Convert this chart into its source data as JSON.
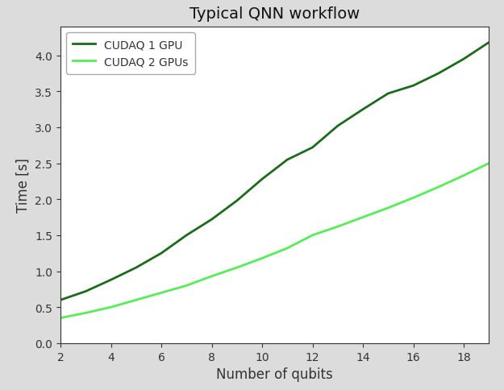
{
  "title": "Typical QNN workflow",
  "xlabel": "Number of qubits",
  "ylabel": "Time [s]",
  "x_1gpu": [
    2,
    3,
    4,
    5,
    6,
    7,
    8,
    9,
    10,
    11,
    12,
    13,
    14,
    15,
    16,
    17,
    18,
    19
  ],
  "y_1gpu": [
    0.6,
    0.72,
    0.88,
    1.05,
    1.25,
    1.5,
    1.72,
    1.98,
    2.28,
    2.55,
    2.72,
    3.02,
    3.25,
    3.47,
    3.58,
    3.75,
    3.95,
    4.18
  ],
  "x_2gpu": [
    2,
    3,
    4,
    5,
    6,
    7,
    8,
    9,
    10,
    11,
    12,
    13,
    14,
    15,
    16,
    17,
    18,
    19
  ],
  "y_2gpu": [
    0.35,
    0.42,
    0.5,
    0.6,
    0.7,
    0.8,
    0.93,
    1.05,
    1.18,
    1.32,
    1.5,
    1.62,
    1.75,
    1.88,
    2.02,
    2.17,
    2.33,
    2.5
  ],
  "color_1gpu": "#1a6b1a",
  "color_2gpu": "#55ee55",
  "label_1gpu": "CUDAQ 1 GPU",
  "label_2gpu": "CUDAQ 2 GPUs",
  "xlim": [
    2,
    19
  ],
  "ylim": [
    0,
    4.4
  ],
  "xticks": [
    2,
    4,
    6,
    8,
    10,
    12,
    14,
    16,
    18
  ],
  "yticks": [
    0.0,
    0.5,
    1.0,
    1.5,
    2.0,
    2.5,
    3.0,
    3.5,
    4.0
  ],
  "linewidth": 2.0,
  "figure_facecolor": "#dcdcdc",
  "axes_facecolor": "#ffffff",
  "title_fontsize": 14,
  "label_fontsize": 12,
  "tick_fontsize": 10
}
